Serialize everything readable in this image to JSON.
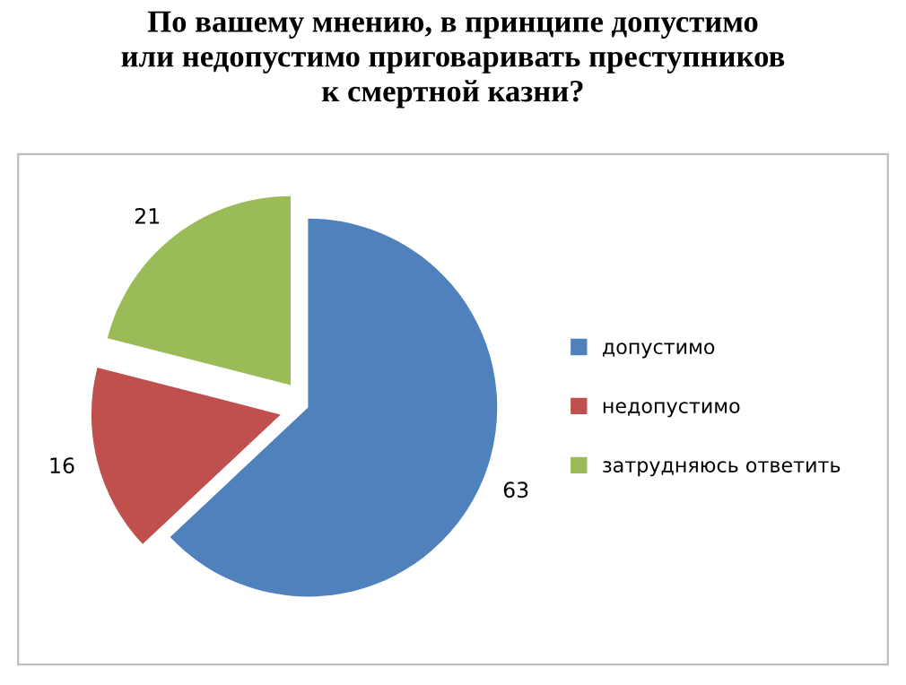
{
  "chart_data": {
    "type": "pie",
    "title": "По вашему мнению, в принципе допустимо\nили недопустимо приговаривать преступников\nк смертной казни?",
    "categories": [
      "допустимо",
      "недопустимо",
      "затрудняюсь ответить"
    ],
    "values": [
      63,
      16,
      21
    ],
    "colors": [
      "#4f81bd",
      "#c0504d",
      "#9bbb59"
    ],
    "data_labels": true,
    "legend": "right"
  }
}
